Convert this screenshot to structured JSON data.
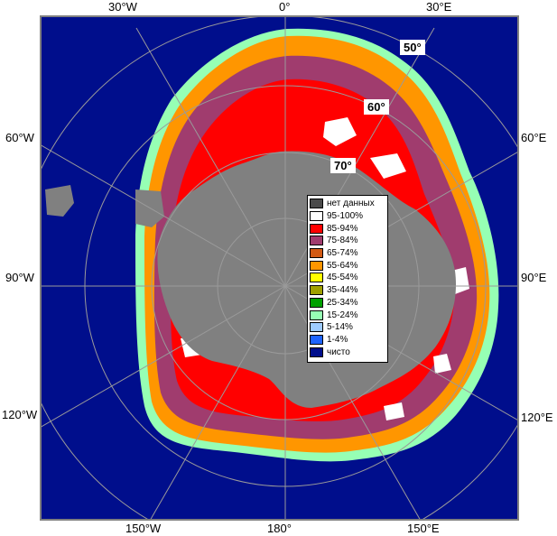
{
  "map": {
    "longitude_labels": {
      "top": [
        "30°W",
        "0°",
        "30°E"
      ],
      "left": [
        "60°W",
        "90°W",
        "120°W"
      ],
      "right": [
        "60°E",
        "90°E",
        "120°E"
      ],
      "bottom": [
        "150°W",
        "180°",
        "150°E"
      ]
    },
    "latitude_labels": [
      "50°",
      "60°",
      "70°"
    ],
    "colors": {
      "ocean": "#000e8c",
      "land": "#808080",
      "frame": "#808080",
      "grid": "#9a9a9a"
    }
  },
  "legend": {
    "items": [
      {
        "label": "нет данных",
        "color": "#4a4a4a"
      },
      {
        "label": "95-100%",
        "color": "#ffffff"
      },
      {
        "label": "85-94%",
        "color": "#ff0000"
      },
      {
        "label": "75-84%",
        "color": "#a03c6e"
      },
      {
        "label": "65-74%",
        "color": "#d25a14"
      },
      {
        "label": "55-64%",
        "color": "#ff9600"
      },
      {
        "label": "45-54%",
        "color": "#ffff00"
      },
      {
        "label": "35-44%",
        "color": "#a0a000"
      },
      {
        "label": "25-34%",
        "color": "#00a000"
      },
      {
        "label": "15-24%",
        "color": "#96ffb4"
      },
      {
        "label": "5-14%",
        "color": "#9ecbff"
      },
      {
        "label": "1-4%",
        "color": "#1e64ff"
      },
      {
        "label": "чисто",
        "color": "#000e8c"
      }
    ]
  }
}
